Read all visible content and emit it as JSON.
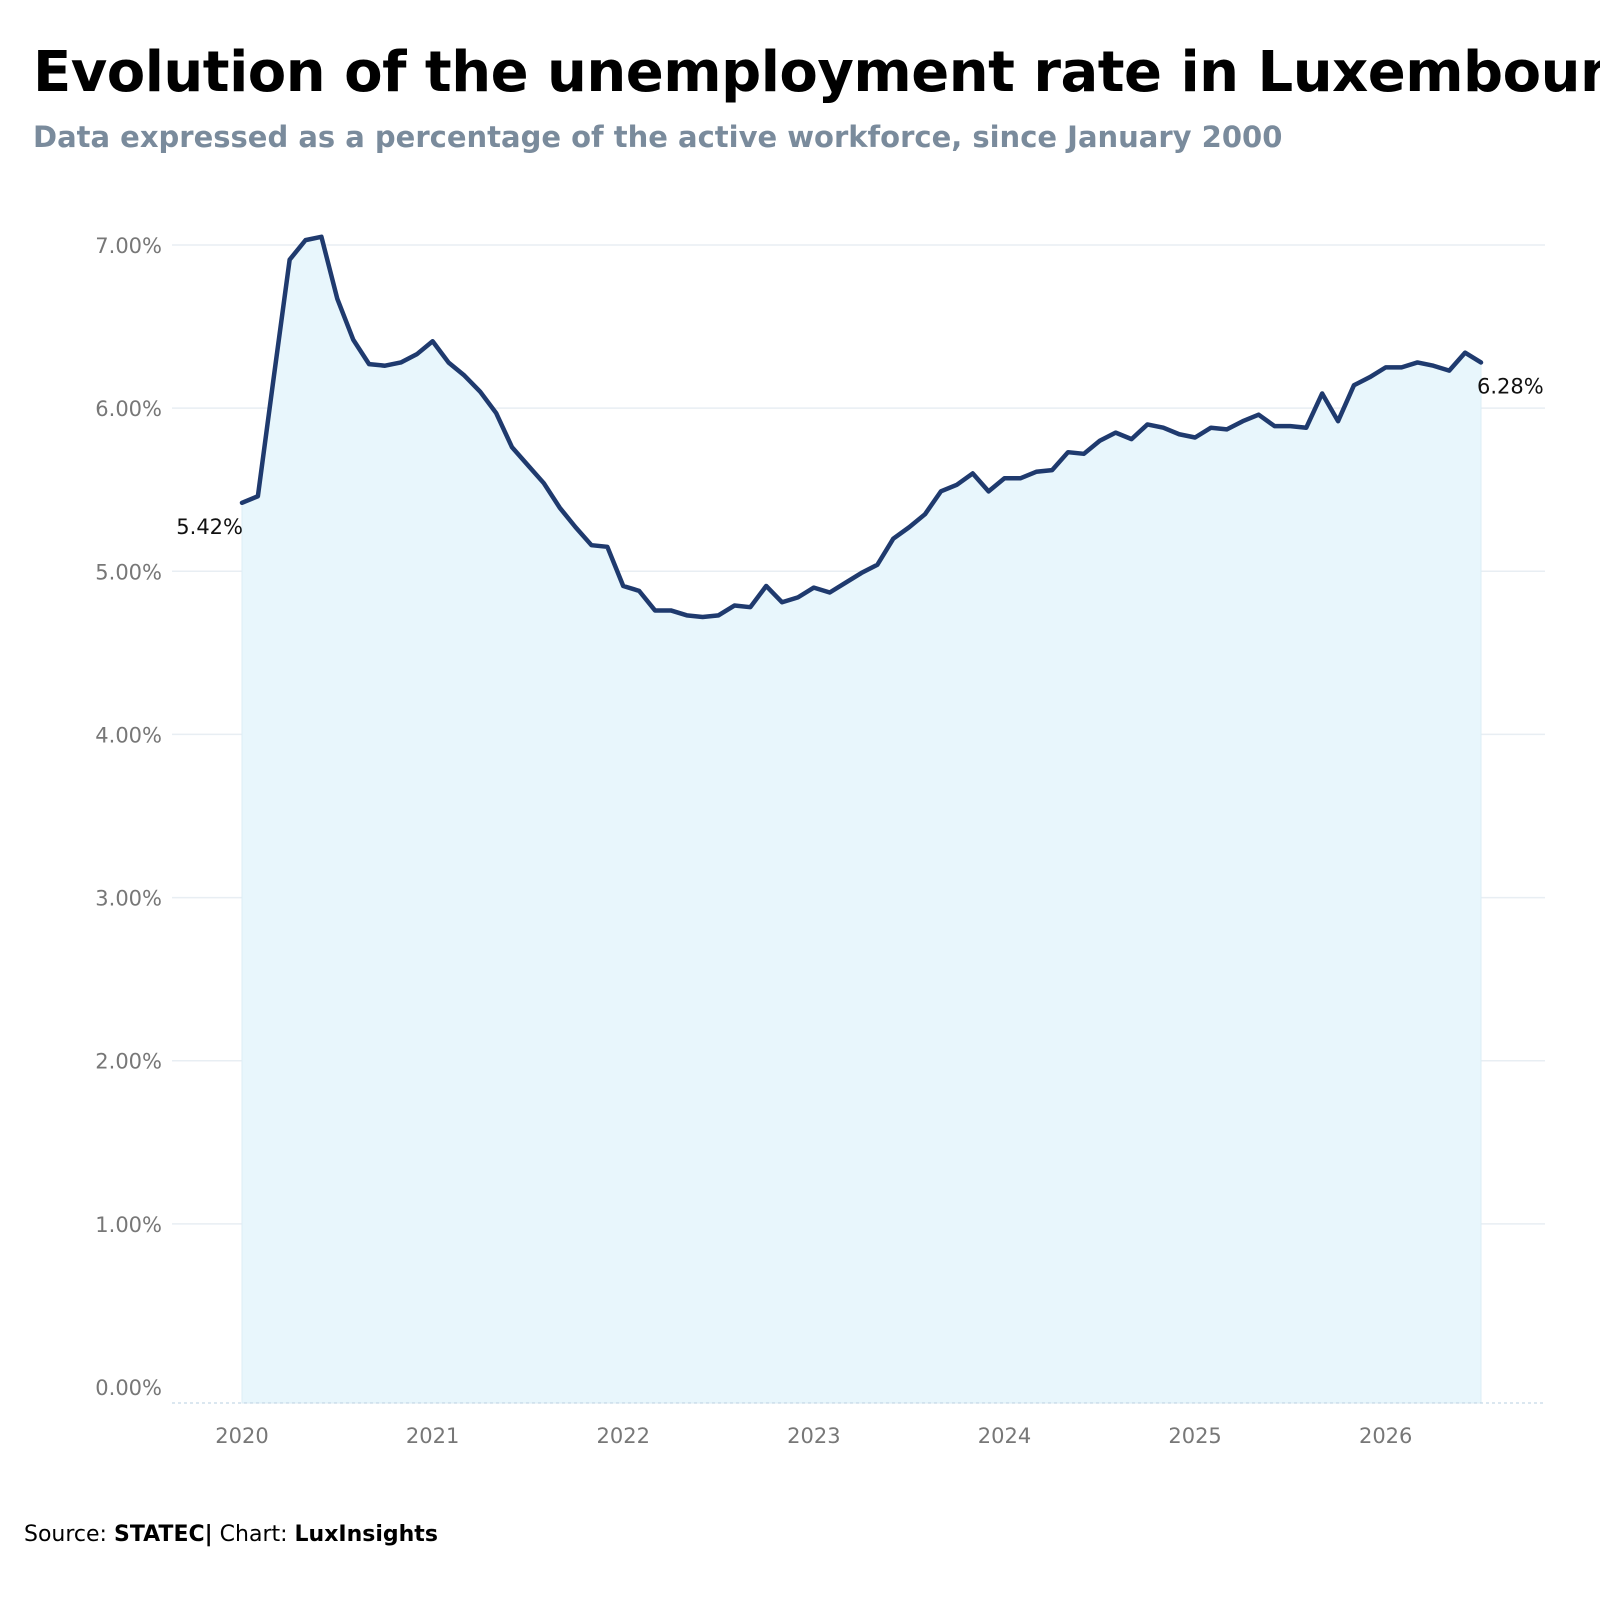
{
  "header": {
    "title": "Evolution of the unemployment rate in Luxembourg",
    "subtitle": "Data expressed as a percentage of the active workforce, since January 2000"
  },
  "footer": {
    "source_label": "Source: ",
    "source_name": "STATEC",
    "chart_label": "| Chart: ",
    "chart_name": "LuxInsights"
  },
  "colors": {
    "line": "#1f3a6e",
    "area": "#e8f6fc",
    "grid": "#e8eef3"
  },
  "chart_data": {
    "type": "area",
    "title": "Evolution of the unemployment rate in Luxembourg",
    "subtitle": "Data expressed as a percentage of the active workforce, since January 2000",
    "xlabel": "",
    "ylabel": "",
    "ylim": [
      0,
      7
    ],
    "y_ticks": [
      0,
      1,
      2,
      3,
      4,
      5,
      6,
      7
    ],
    "y_tick_format": "percent_2dp",
    "x_ticks": [
      "2020",
      "2021",
      "2022",
      "2023",
      "2024",
      "2025",
      "2026"
    ],
    "x_range": [
      "2019-08",
      "2026-12"
    ],
    "grid": true,
    "legend": "none",
    "start_label": "5.42%",
    "end_label": "6.28%",
    "x": [
      "2020-01",
      "2020-02",
      "2020-03",
      "2020-04",
      "2020-05",
      "2020-06",
      "2020-07",
      "2020-08",
      "2020-09",
      "2020-10",
      "2020-11",
      "2020-12",
      "2021-01",
      "2021-02",
      "2021-03",
      "2021-04",
      "2021-05",
      "2021-06",
      "2021-07",
      "2021-08",
      "2021-09",
      "2021-10",
      "2021-11",
      "2021-12",
      "2022-01",
      "2022-02",
      "2022-03",
      "2022-04",
      "2022-05",
      "2022-06",
      "2022-07",
      "2022-08",
      "2022-09",
      "2022-10",
      "2022-11",
      "2022-12",
      "2023-01",
      "2023-02",
      "2023-03",
      "2023-04",
      "2023-05",
      "2023-06",
      "2023-07",
      "2023-08",
      "2023-09",
      "2023-10",
      "2023-11",
      "2023-12",
      "2024-01",
      "2024-02",
      "2024-03",
      "2024-04",
      "2024-05",
      "2024-06",
      "2024-07",
      "2024-08",
      "2024-09",
      "2024-10",
      "2024-11",
      "2024-12",
      "2025-01",
      "2025-02",
      "2025-03",
      "2025-04",
      "2025-05",
      "2025-06",
      "2025-07",
      "2025-08",
      "2025-09",
      "2025-10",
      "2025-11",
      "2025-12",
      "2026-01",
      "2026-02",
      "2026-03",
      "2026-04",
      "2026-05",
      "2026-06",
      "2026-07"
    ],
    "series": [
      {
        "values": [
          5.42,
          5.46,
          6.19,
          6.91,
          7.03,
          7.05,
          6.67,
          6.42,
          6.27,
          6.26,
          6.28,
          6.33,
          6.41,
          6.28,
          6.2,
          6.1,
          5.97,
          5.76,
          5.65,
          5.54,
          5.39,
          5.27,
          5.16,
          5.15,
          4.91,
          4.88,
          4.76,
          4.76,
          4.73,
          4.72,
          4.73,
          4.79,
          4.78,
          4.91,
          4.81,
          4.84,
          4.9,
          4.87,
          4.93,
          4.99,
          5.04,
          5.2,
          5.27,
          5.35,
          5.49,
          5.53,
          5.6,
          5.49,
          5.57,
          5.57,
          5.61,
          5.62,
          5.73,
          5.72,
          5.8,
          5.85,
          5.81,
          5.9,
          5.88,
          5.84,
          5.82,
          5.88,
          5.87,
          5.92,
          5.96,
          5.89,
          5.89,
          5.88,
          6.09,
          5.92,
          6.14,
          6.19,
          6.25,
          6.25,
          6.28,
          6.26,
          6.23,
          6.34,
          6.28
        ]
      }
    ]
  }
}
